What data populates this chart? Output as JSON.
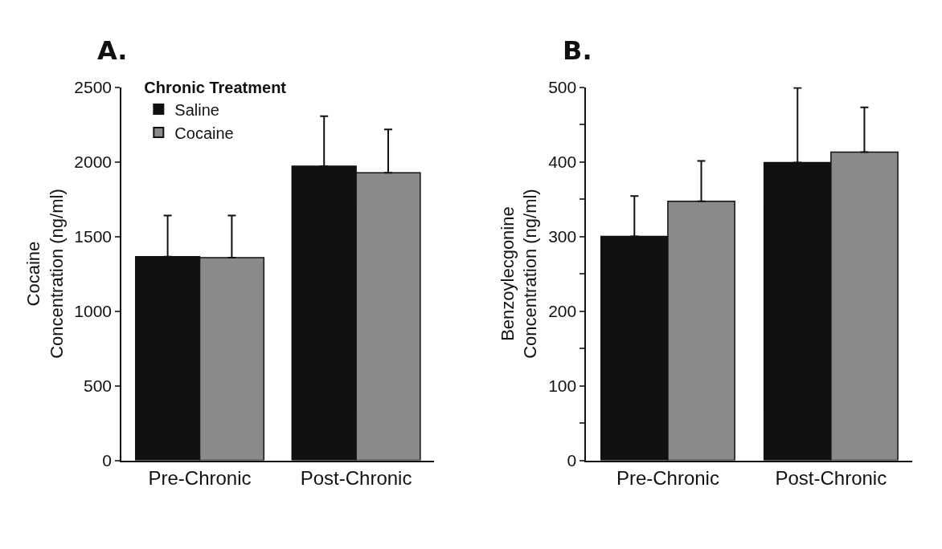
{
  "chart_data": [
    {
      "type": "bar",
      "title": "A.",
      "ylabel": "Cocaine\nConcentration (ng/ml)",
      "legend_title": "Chronic Treatment",
      "legend": "top left",
      "categories": [
        "Pre-Chronic",
        "Post-Chronic"
      ],
      "ylim": [
        0,
        2500
      ],
      "yticks": [
        0,
        500,
        1000,
        1500,
        2000,
        2500
      ],
      "series": [
        {
          "name": "Saline",
          "color": "#111111",
          "values": [
            1365,
            1970
          ],
          "errors": [
            [
              1365,
              1640
            ],
            [
              1970,
              2305
            ]
          ]
        },
        {
          "name": "Cocaine",
          "color": "#8a8a8a",
          "values": [
            1358,
            1926
          ],
          "errors": [
            [
              1358,
              1640
            ],
            [
              1926,
              2216
            ]
          ]
        }
      ]
    },
    {
      "type": "bar",
      "title": "B.",
      "ylabel": "Benzoylecgonine\nConcentration (ng/ml)",
      "categories": [
        "Pre-Chronic",
        "Post-Chronic"
      ],
      "ylim": [
        0,
        500
      ],
      "yticks": [
        0,
        {
          "value": 50,
          "label": null
        },
        100,
        {
          "value": 150,
          "label": null
        },
        200,
        {
          "value": 250,
          "label": null
        },
        300,
        {
          "value": 350,
          "label": null
        },
        400,
        {
          "value": 450,
          "label": null
        },
        500
      ],
      "series": [
        {
          "color": "#111111",
          "values": [
            300,
            399
          ],
          "errors": [
            [
              300,
              354
            ],
            [
              399,
              499
            ]
          ]
        },
        {
          "color": "#8a8a8a",
          "values": [
            347,
            413
          ],
          "errors": [
            [
              347,
              401
            ],
            [
              413,
              473
            ]
          ]
        }
      ]
    }
  ]
}
